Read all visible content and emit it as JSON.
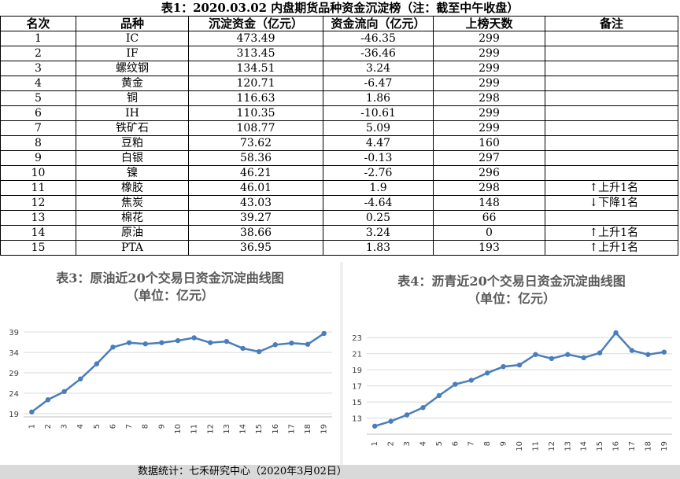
{
  "table": {
    "title": "表1：2020.03.02 内盘期货品种资金沉淀榜（注：截至中午收盘）",
    "headers": [
      "名次",
      "品种",
      "沉淀资金（亿元）",
      "资金流向（亿元）",
      "上榜天数",
      "备注"
    ],
    "rows": [
      {
        "rank": "1",
        "name": "IC",
        "fund": "473.49",
        "flow": "-46.35",
        "days": "299",
        "note": ""
      },
      {
        "rank": "2",
        "name": "IF",
        "fund": "313.45",
        "flow": "-36.46",
        "days": "299",
        "note": ""
      },
      {
        "rank": "3",
        "name": "螺纹钢",
        "fund": "134.51",
        "flow": "3.24",
        "days": "299",
        "note": ""
      },
      {
        "rank": "4",
        "name": "黄金",
        "fund": "120.71",
        "flow": "-6.47",
        "days": "299",
        "note": ""
      },
      {
        "rank": "5",
        "name": "铜",
        "fund": "116.63",
        "flow": "1.86",
        "days": "298",
        "note": ""
      },
      {
        "rank": "6",
        "name": "IH",
        "fund": "110.35",
        "flow": "-10.61",
        "days": "299",
        "note": ""
      },
      {
        "rank": "7",
        "name": "铁矿石",
        "fund": "108.77",
        "flow": "5.09",
        "days": "299",
        "note": ""
      },
      {
        "rank": "8",
        "name": "豆粕",
        "fund": "73.62",
        "flow": "4.47",
        "days": "160",
        "note": ""
      },
      {
        "rank": "9",
        "name": "白银",
        "fund": "58.36",
        "flow": "-0.13",
        "days": "297",
        "note": ""
      },
      {
        "rank": "10",
        "name": "镍",
        "fund": "46.21",
        "flow": "-2.76",
        "days": "296",
        "note": ""
      },
      {
        "rank": "11",
        "name": "橡胶",
        "fund": "46.01",
        "flow": "1.9",
        "days": "298",
        "note": "↑上升1名"
      },
      {
        "rank": "12",
        "name": "焦炭",
        "fund": "43.03",
        "flow": "-4.64",
        "days": "148",
        "note": "↓下降1名"
      },
      {
        "rank": "13",
        "name": "棉花",
        "fund": "39.27",
        "flow": "0.25",
        "days": "66",
        "note": ""
      },
      {
        "rank": "14",
        "name": "原油",
        "fund": "38.66",
        "flow": "3.24",
        "days": "0",
        "note": "↑上升1名"
      },
      {
        "rank": "15",
        "name": "PTA",
        "fund": "36.95",
        "flow": "1.83",
        "days": "193",
        "note": "↑上升1名"
      }
    ]
  },
  "footer": {
    "text": "数据统计：七禾研究中心（2020年3月02日）"
  },
  "chart_data": [
    {
      "type": "line",
      "title": "表3：原油近20个交易日资金沉淀曲线图",
      "subtitle": "（单位：亿元）",
      "x": [
        "1",
        "2",
        "3",
        "4",
        "5",
        "6",
        "7",
        "8",
        "9",
        "10",
        "11",
        "12",
        "13",
        "14",
        "15",
        "16",
        "17",
        "18",
        "19"
      ],
      "series": [
        {
          "values": [
            19.4,
            22.4,
            24.4,
            27.5,
            31.2,
            35.3,
            36.4,
            36.1,
            36.4,
            36.9,
            37.6,
            36.4,
            36.7,
            35.0,
            34.2,
            35.9,
            36.3,
            36.0,
            38.66
          ]
        }
      ],
      "yticks": [
        19,
        24,
        29,
        34,
        39
      ],
      "ylim": [
        18.2,
        40
      ],
      "color": "#4a7ebb",
      "grid": true
    },
    {
      "type": "line",
      "title": "表4：沥青近20个交易日资金沉淀曲线图",
      "subtitle": "（单位：亿元）",
      "x": [
        "1",
        "2",
        "3",
        "4",
        "5",
        "6",
        "7",
        "8",
        "9",
        "10",
        "11",
        "12",
        "13",
        "14",
        "15",
        "16",
        "17",
        "18",
        "19"
      ],
      "series": [
        {
          "values": [
            12.0,
            12.6,
            13.4,
            14.3,
            15.8,
            17.2,
            17.7,
            18.6,
            19.4,
            19.6,
            20.9,
            20.4,
            20.9,
            20.5,
            21.1,
            23.6,
            21.4,
            20.9,
            21.2
          ]
        }
      ],
      "yticks": [
        13,
        15,
        17,
        19,
        21,
        23
      ],
      "ylim": [
        11.0,
        24.0
      ],
      "color": "#4a7ebb",
      "grid": true
    }
  ]
}
